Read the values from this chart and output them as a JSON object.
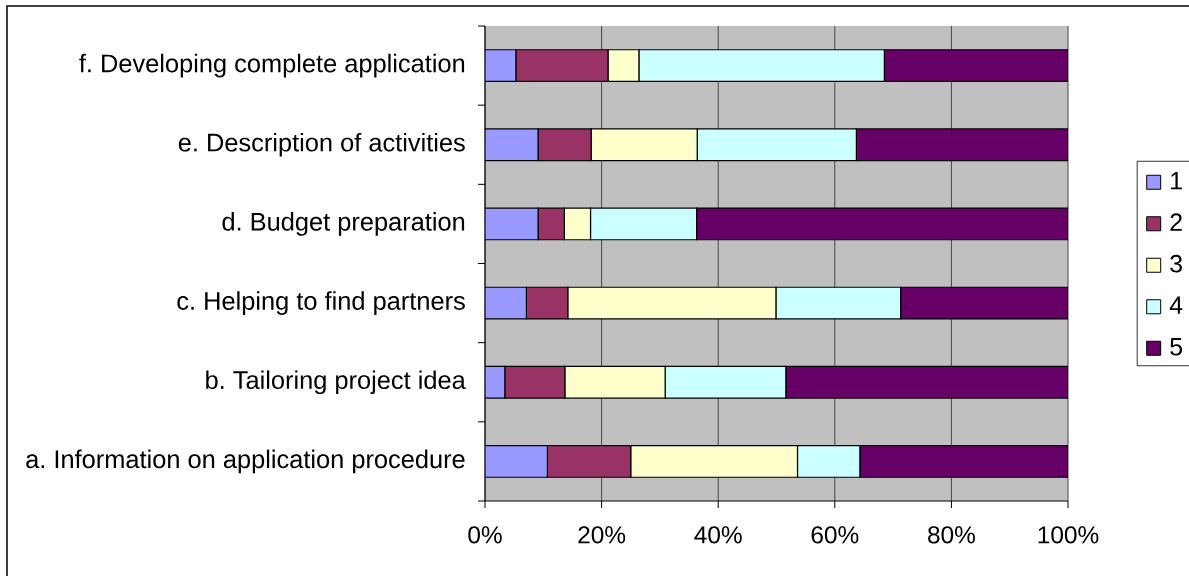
{
  "chart_data": {
    "type": "bar",
    "orientation": "horizontal",
    "stacked": true,
    "categories": [
      "f. Developing complete application",
      "e. Description of activities",
      "d. Budget preparation",
      "c. Helping to find partners",
      "b. Tailoring project idea",
      "a. Information on application procedure"
    ],
    "series": [
      {
        "name": "1",
        "color": "#9999ff",
        "values": [
          5.3,
          9.1,
          9.1,
          7.1,
          3.4,
          10.7
        ]
      },
      {
        "name": "2",
        "color": "#993366",
        "values": [
          15.8,
          9.1,
          4.5,
          7.1,
          10.3,
          14.3
        ]
      },
      {
        "name": "3",
        "color": "#ffffcc",
        "values": [
          5.3,
          18.2,
          4.5,
          35.7,
          17.2,
          28.6
        ]
      },
      {
        "name": "4",
        "color": "#ccffff",
        "values": [
          42.1,
          27.3,
          18.2,
          21.4,
          20.7,
          10.7
        ]
      },
      {
        "name": "5",
        "color": "#660066",
        "values": [
          31.5,
          36.3,
          63.7,
          28.7,
          48.4,
          35.7
        ]
      }
    ],
    "xlim": [
      0,
      100
    ],
    "xticks": [
      {
        "value": 0,
        "label": "0%"
      },
      {
        "value": 20,
        "label": "20%"
      },
      {
        "value": 40,
        "label": "40%"
      },
      {
        "value": 60,
        "label": "60%"
      },
      {
        "value": 80,
        "label": "80%"
      },
      {
        "value": 100,
        "label": "100%"
      }
    ],
    "grid": "x",
    "legend": "right"
  }
}
